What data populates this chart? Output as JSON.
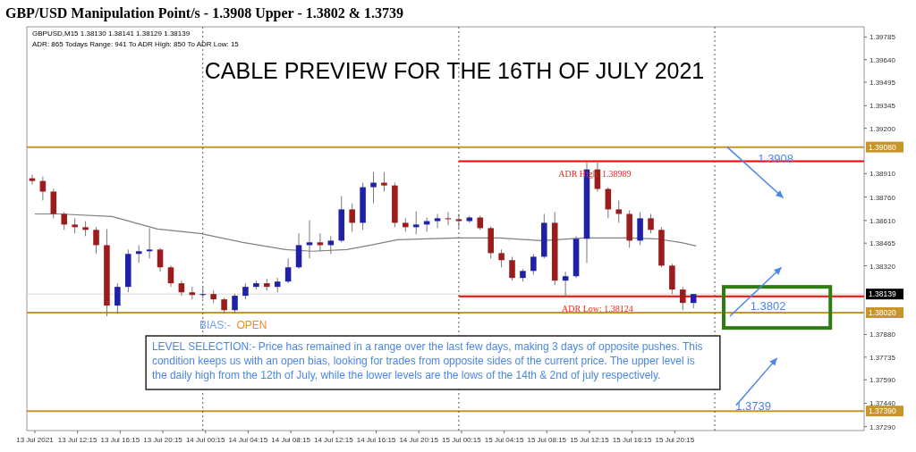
{
  "chart_data": {
    "type": "candlestick",
    "title": "GBP/USD Manipulation Point/s - 1.3908 Upper - 1.3802 & 1.3739",
    "subtitle": "CABLE PREVIEW FOR THE 16TH OF JULY 2021",
    "x": [
      "2021-07-13T08:00",
      "2021-07-13T09:00",
      "2021-07-13T10:00",
      "2021-07-13T11:00",
      "2021-07-13T12:00",
      "2021-07-13T13:00",
      "2021-07-13T14:00",
      "2021-07-13T15:00",
      "2021-07-13T16:00",
      "2021-07-13T17:00",
      "2021-07-13T18:00",
      "2021-07-13T19:00",
      "2021-07-13T20:00",
      "2021-07-13T21:00",
      "2021-07-13T22:00",
      "2021-07-13T23:00",
      "2021-07-14T00:00",
      "2021-07-14T01:00",
      "2021-07-14T02:00",
      "2021-07-14T03:00",
      "2021-07-14T04:00",
      "2021-07-14T05:00",
      "2021-07-14T06:00",
      "2021-07-14T07:00",
      "2021-07-14T08:00",
      "2021-07-14T09:00",
      "2021-07-14T10:00",
      "2021-07-14T11:00",
      "2021-07-14T12:00",
      "2021-07-14T13:00",
      "2021-07-14T14:00",
      "2021-07-14T15:00",
      "2021-07-14T16:00",
      "2021-07-14T17:00",
      "2021-07-14T18:00",
      "2021-07-14T19:00",
      "2021-07-14T20:00",
      "2021-07-14T21:00",
      "2021-07-14T22:00",
      "2021-07-14T23:00",
      "2021-07-15T00:00",
      "2021-07-15T01:00",
      "2021-07-15T02:00",
      "2021-07-15T03:00",
      "2021-07-15T04:00",
      "2021-07-15T05:00",
      "2021-07-15T06:00",
      "2021-07-15T07:00",
      "2021-07-15T08:00",
      "2021-07-15T09:00",
      "2021-07-15T10:00",
      "2021-07-15T11:00",
      "2021-07-15T12:00",
      "2021-07-15T13:00",
      "2021-07-15T14:00",
      "2021-07-15T15:00",
      "2021-07-15T16:00",
      "2021-07-15T17:00",
      "2021-07-15T18:00",
      "2021-07-15T19:00",
      "2021-07-15T20:00",
      "2021-07-15T21:00",
      "2021-07-15T22:00"
    ],
    "ohlc": [
      [
        1.3888,
        1.38903,
        1.3884,
        1.38863
      ],
      [
        1.38863,
        1.38891,
        1.38738,
        1.38795
      ],
      [
        1.38795,
        1.38812,
        1.38624,
        1.38652
      ],
      [
        1.38652,
        1.38664,
        1.3855,
        1.38584
      ],
      [
        1.38584,
        1.38624,
        1.38527,
        1.38567
      ],
      [
        1.38567,
        1.38606,
        1.3851,
        1.3855
      ],
      [
        1.3855,
        1.38567,
        1.38396,
        1.38452
      ],
      [
        1.38452,
        1.38555,
        1.37997,
        1.38065
      ],
      [
        1.38065,
        1.38208,
        1.38014,
        1.38185
      ],
      [
        1.38185,
        1.38424,
        1.3815,
        1.38396
      ],
      [
        1.38396,
        1.38452,
        1.38339,
        1.38413
      ],
      [
        1.38413,
        1.38561,
        1.38367,
        1.38424
      ],
      [
        1.38424,
        1.38435,
        1.38282,
        1.3831
      ],
      [
        1.3831,
        1.38321,
        1.38185,
        1.38208
      ],
      [
        1.38208,
        1.38225,
        1.38128,
        1.3815
      ],
      [
        1.3815,
        1.38185,
        1.38105,
        1.38133
      ],
      [
        1.38133,
        1.38185,
        1.38111,
        1.38139
      ],
      [
        1.38139,
        1.38162,
        1.38082,
        1.38105
      ],
      [
        1.38105,
        1.38116,
        1.38014,
        1.38036
      ],
      [
        1.38036,
        1.38139,
        1.38014,
        1.38128
      ],
      [
        1.38128,
        1.38208,
        1.38105,
        1.38185
      ],
      [
        1.38185,
        1.38225,
        1.38168,
        1.38208
      ],
      [
        1.38208,
        1.38236,
        1.38162,
        1.38185
      ],
      [
        1.38185,
        1.38242,
        1.3815,
        1.38219
      ],
      [
        1.38219,
        1.38367,
        1.38208,
        1.3831
      ],
      [
        1.3831,
        1.38527,
        1.38299,
        1.38452
      ],
      [
        1.38452,
        1.38612,
        1.38367,
        1.3847
      ],
      [
        1.3847,
        1.38527,
        1.38413,
        1.38452
      ],
      [
        1.38452,
        1.3851,
        1.38396,
        1.38481
      ],
      [
        1.38481,
        1.38766,
        1.3847,
        1.38681
      ],
      [
        1.38681,
        1.3872,
        1.38538,
        1.38595
      ],
      [
        1.38595,
        1.38852,
        1.3855,
        1.38823
      ],
      [
        1.38823,
        1.3892,
        1.3872,
        1.38852
      ],
      [
        1.38852,
        1.3892,
        1.38795,
        1.38834
      ],
      [
        1.38834,
        1.38852,
        1.38567,
        1.38595
      ],
      [
        1.38595,
        1.38624,
        1.38538,
        1.38567
      ],
      [
        1.38567,
        1.38669,
        1.38521,
        1.38584
      ],
      [
        1.38584,
        1.38629,
        1.38538,
        1.38606
      ],
      [
        1.38606,
        1.38652,
        1.38561,
        1.38624
      ],
      [
        1.38624,
        1.38664,
        1.38579,
        1.38618
      ],
      [
        1.38618,
        1.38652,
        1.38561,
        1.38606
      ],
      [
        1.38606,
        1.38641,
        1.38595,
        1.38629
      ],
      [
        1.38629,
        1.38641,
        1.3855,
        1.38561
      ],
      [
        1.38561,
        1.38572,
        1.38367,
        1.38401
      ],
      [
        1.38401,
        1.38424,
        1.3831,
        1.38356
      ],
      [
        1.38356,
        1.38378,
        1.38225,
        1.38242
      ],
      [
        1.38242,
        1.38299,
        1.38219,
        1.38287
      ],
      [
        1.38287,
        1.38396,
        1.38264,
        1.38378
      ],
      [
        1.38378,
        1.38652,
        1.38367,
        1.38595
      ],
      [
        1.38595,
        1.38664,
        1.38196,
        1.38225
      ],
      [
        1.38225,
        1.38282,
        1.38122,
        1.38253
      ],
      [
        1.38253,
        1.3851,
        1.38242,
        1.38493
      ],
      [
        1.38493,
        1.38983,
        1.38339,
        1.38937
      ],
      [
        1.38937,
        1.38983,
        1.38795,
        1.38812
      ],
      [
        1.38812,
        1.38823,
        1.38624,
        1.38681
      ],
      [
        1.38681,
        1.38738,
        1.38595,
        1.38652
      ],
      [
        1.38652,
        1.38675,
        1.38435,
        1.38481
      ],
      [
        1.38481,
        1.38664,
        1.38452,
        1.38624
      ],
      [
        1.38624,
        1.38652,
        1.38527,
        1.3855
      ],
      [
        1.3855,
        1.38567,
        1.3831,
        1.38321
      ],
      [
        1.38321,
        1.38333,
        1.38139,
        1.38168
      ],
      [
        1.38168,
        1.38185,
        1.38036,
        1.38082
      ],
      [
        1.38082,
        1.38139,
        1.38048,
        1.38139
      ]
    ],
    "series": [
      {
        "type": "line",
        "color": "#808080",
        "x": [
          "2021-07-13T08:15",
          "2021-07-13T10:30",
          "2021-07-13T15:30",
          "2021-07-13T19:45",
          "2021-07-13T23:45",
          "2021-07-14T03:45",
          "2021-07-14T07:45",
          "2021-07-14T10:15",
          "2021-07-14T13:30",
          "2021-07-14T15:45",
          "2021-07-14T18:15",
          "2021-07-14T23:45",
          "2021-07-15T03:45",
          "2021-07-15T07:45",
          "2021-07-15T11:45",
          "2021-07-15T16:00",
          "2021-07-15T18:30",
          "2021-07-15T20:45",
          "2021-07-15T22:15"
        ],
        "values": [
          1.38652,
          1.38652,
          1.38635,
          1.38555,
          1.38527,
          1.3847,
          1.38424,
          1.38413,
          1.38424,
          1.38452,
          1.38487,
          1.38498,
          1.38498,
          1.38481,
          1.38498,
          1.38498,
          1.38493,
          1.3847,
          1.38447
        ]
      },
      {
        "type": "line",
        "color": "#ff0000",
        "x": [
          "2021-07-15T00:00",
          "2021-07-16T14:00"
        ],
        "values": [
          1.38989,
          1.38989
        ]
      },
      {
        "type": "line",
        "color": "#ff0000",
        "x": [
          "2021-07-15T00:00",
          "2021-07-16T14:00"
        ],
        "values": [
          1.38124,
          1.38124
        ]
      }
    ],
    "xlim": [
      "2021-07-13T07:30",
      "2021-07-16T14:00"
    ],
    "xticks": [
      {
        "value": "2021-07-13T08:15",
        "label": "13 Jul 2021"
      },
      {
        "value": "2021-07-13T12:15",
        "label": "13 Jul 12:15"
      },
      {
        "value": "2021-07-13T16:15",
        "label": "13 Jul 16:15"
      },
      {
        "value": "2021-07-13T20:15",
        "label": "13 Jul 20:15"
      },
      {
        "value": "2021-07-14T00:15",
        "label": "14 Jul 00:15"
      },
      {
        "value": "2021-07-14T04:15",
        "label": "14 Jul 04:15"
      },
      {
        "value": "2021-07-14T08:15",
        "label": "14 Jul 08:15"
      },
      {
        "value": "2021-07-14T12:15",
        "label": "14 Jul 12:15"
      },
      {
        "value": "2021-07-14T16:15",
        "label": "14 Jul 16:15"
      },
      {
        "value": "2021-07-14T20:15",
        "label": "14 Jul 20:15"
      },
      {
        "value": "2021-07-15T00:15",
        "label": "15 Jul 00:15"
      },
      {
        "value": "2021-07-15T04:15",
        "label": "15 Jul 04:15"
      },
      {
        "value": "2021-07-15T08:15",
        "label": "15 Jul 08:15"
      },
      {
        "value": "2021-07-15T12:15",
        "label": "15 Jul 12:15"
      },
      {
        "value": "2021-07-15T16:15",
        "label": "15 Jul 16:15"
      },
      {
        "value": "2021-07-15T20:15",
        "label": "15 Jul 20:15"
      }
    ],
    "ylim": [
      1.37265,
      1.3985
    ],
    "yticks": [
      1.39785,
      {
        "value": 1.3964,
        "label": "1.39640"
      },
      1.39495,
      1.39345,
      {
        "value": 1.392,
        "label": "1.39200"
      },
      {
        "value": 1.3891,
        "label": "1.38910"
      },
      {
        "value": 1.3876,
        "label": "1.38760"
      },
      {
        "value": 1.3861,
        "label": "1.38610"
      },
      1.38465,
      {
        "value": 1.3832,
        "label": "1.38320"
      },
      {
        "value": 1.3788,
        "label": "1.37880"
      },
      1.37735,
      {
        "value": 1.3759,
        "label": "1.37590"
      },
      {
        "value": 1.3744,
        "label": "1.37440"
      },
      {
        "value": 1.3729,
        "label": "1.37290"
      }
    ],
    "ref_lines": [
      {
        "axis": "y",
        "value": 1.3908,
        "label": "1.39080",
        "color": "#c8952a"
      },
      {
        "axis": "y",
        "value": 1.3802,
        "label": "1.38020",
        "color": "#c8952a"
      },
      {
        "axis": "y",
        "value": 1.3739,
        "label": "1.37390",
        "color": "#c8952a"
      },
      {
        "axis": "y",
        "value": 1.38139,
        "label": "1.38139",
        "color": "#d8d8d8"
      },
      {
        "axis": "x",
        "value": "2021-07-14T00:00",
        "color": "#555555",
        "line_style": "dotted"
      },
      {
        "axis": "x",
        "value": "2021-07-15T00:00",
        "color": "#555555",
        "line_style": "dotted"
      },
      {
        "axis": "x",
        "value": "2021-07-16T00:00",
        "color": "#555555",
        "line_style": "dotted"
      }
    ],
    "annotations": [
      "GBPUSD,M15  1.38130 1.38141 1.38129 1.38139",
      "ADR: 865  Todays Range: 941  To ADR High: 850  To ADR Low: 15",
      {
        "text": "ADR High: 1.38989",
        "x": "2021-07-15T12:45",
        "y": 1.38989
      },
      {
        "text": "ADR Low: 1.38124",
        "x": "2021-07-15T13:00",
        "y": 1.38124
      },
      "BIAS:-",
      "OPEN",
      "LEVEL SELECTION:- Price has remained in a range over the last few days, making 3 days of opposite pushes. This condition keeps us with an open bias, looking for trades from opposite sides of the current price. The upper level is the daily high from the 12th of July, while the lower levels are the lows of the 14th & 2nd of july respectively.",
      "1.3908",
      "1.3802",
      "1.3739"
    ],
    "grid": false
  }
}
